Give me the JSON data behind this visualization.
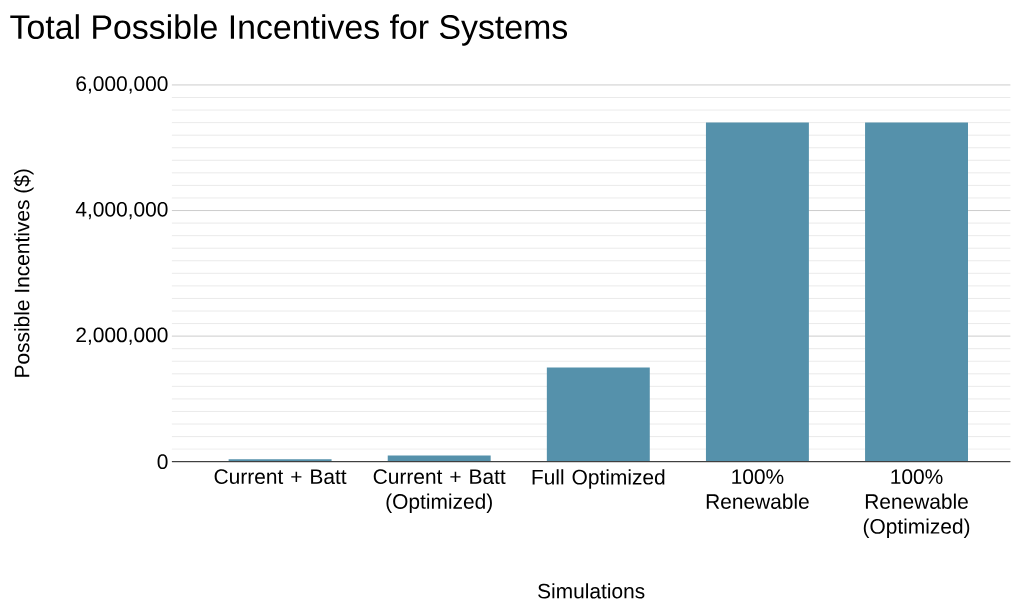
{
  "chart_data": {
    "type": "bar",
    "title": "Total Possible Incentives for Systems",
    "xlabel": "Simulations",
    "ylabel": "Possible Incentives ($)",
    "categories": [
      "Current + Batt",
      "Current + Batt (Optimized)",
      "Full Optimized",
      "100% Renewable",
      "100% Renewable (Optimized)"
    ],
    "values": [
      40000,
      100000,
      1500000,
      5400000,
      5400000
    ],
    "color": "#5591ab",
    "ylim": [
      0,
      6000000
    ],
    "yticks": [
      {
        "value": 0,
        "label": "0"
      },
      {
        "value": 2000000,
        "label": "2,000,000"
      },
      {
        "value": 4000000,
        "label": "4,000,000"
      },
      {
        "value": 6000000,
        "label": "6,000,000"
      }
    ],
    "grid": true
  }
}
